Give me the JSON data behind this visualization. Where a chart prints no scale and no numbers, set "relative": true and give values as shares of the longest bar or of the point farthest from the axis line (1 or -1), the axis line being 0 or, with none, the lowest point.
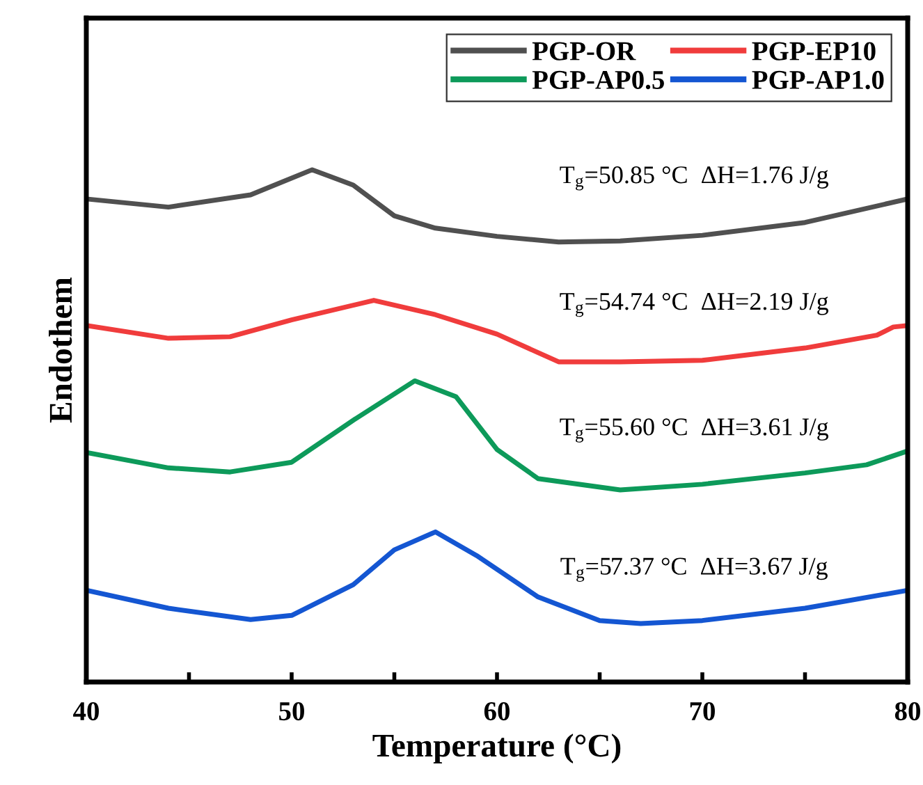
{
  "chart_data": {
    "type": "line",
    "relative": true,
    "xlabel": "Temperature (°C)",
    "ylabel": "Endothem",
    "xlim": [
      40,
      80
    ],
    "xticks": [
      40,
      {
        "value": 45,
        "label": null
      },
      50,
      {
        "value": 55,
        "label": null
      },
      60,
      {
        "value": 65,
        "label": null
      },
      70,
      {
        "value": 75,
        "label": null
      },
      80
    ],
    "legend": "top right",
    "grid": false,
    "line_style": "solid",
    "marker": "none",
    "series": [
      {
        "name": "PGP-OR",
        "color": "#505050",
        "x": [
          40,
          44,
          48,
          51,
          53,
          55,
          57,
          60,
          63,
          66,
          70,
          75,
          80
        ],
        "values": [
          0.943,
          0.927,
          0.951,
          1,
          0.97,
          0.91,
          0.886,
          0.87,
          0.859,
          0.861,
          0.872,
          0.897,
          0.943
        ]
      },
      {
        "name": "PGP-EP10",
        "color": "#f03c3c",
        "x": [
          40,
          44,
          47,
          50,
          54,
          57,
          60,
          63,
          66,
          70,
          75,
          78.5,
          79.3,
          80
        ],
        "values": [
          0.696,
          0.671,
          0.674,
          0.707,
          0.745,
          0.717,
          0.679,
          0.625,
          0.625,
          0.628,
          0.652,
          0.677,
          0.693,
          0.696
        ]
      },
      {
        "name": "PGP-AP0.5",
        "color": "#0d9a5a",
        "x": [
          40,
          44,
          47,
          50,
          53,
          56,
          58,
          60,
          62,
          66,
          70,
          75,
          78,
          80
        ],
        "values": [
          0.448,
          0.418,
          0.41,
          0.429,
          0.511,
          0.588,
          0.557,
          0.454,
          0.397,
          0.375,
          0.386,
          0.408,
          0.424,
          0.451
        ]
      },
      {
        "name": "PGP-AP1.0",
        "color": "#1456d2",
        "x": [
          40,
          44,
          48,
          50,
          53,
          55,
          57,
          59,
          62,
          65,
          67,
          70,
          75,
          80
        ],
        "values": [
          0.179,
          0.144,
          0.122,
          0.13,
          0.19,
          0.258,
          0.293,
          0.247,
          0.166,
          0.12,
          0.114,
          0.12,
          0.144,
          0.179
        ]
      }
    ],
    "annotations": [
      "T$_{g}$=50.85 °C  ΔH=1.76 J/g",
      "T$_{g}$=54.74 °C  ΔH=2.19 J/g",
      "T$_{g}$=55.60 °C  ΔH=3.61 J/g",
      "T$_{g}$=57.37 °C  ΔH=3.67 J/g"
    ]
  }
}
